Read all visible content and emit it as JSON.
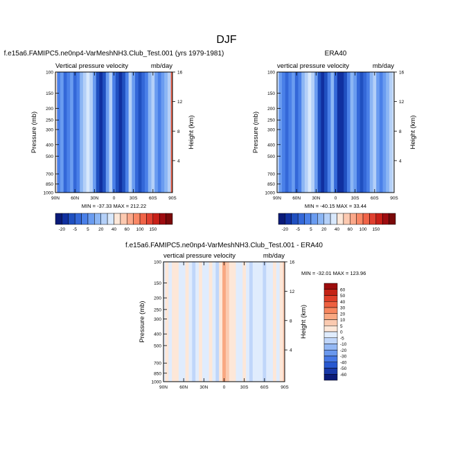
{
  "figure": {
    "title": "DJF"
  },
  "palettes": {
    "full": [
      "#0a1a78",
      "#1030a0",
      "#2050c0",
      "#3468d8",
      "#4a80e8",
      "#6a9cf0",
      "#8cb6f4",
      "#b4d0f8",
      "#d8e8fc",
      "#fde7d8",
      "#fcc9b0",
      "#fba88a",
      "#f98866",
      "#f06448",
      "#e04030",
      "#c82018",
      "#9e0c10",
      "#7a0a0a"
    ],
    "diff": [
      "#0a1a78",
      "#1838a8",
      "#2858d0",
      "#4678e6",
      "#6a98ee",
      "#94b8f4",
      "#c0d6fa",
      "#e0ecfd",
      "#fde7d8",
      "#fbcab0",
      "#f9a882",
      "#f7865e",
      "#ee6040",
      "#de3e28",
      "#c42214",
      "#9c0c0c"
    ]
  },
  "chart_data": [
    {
      "id": "model",
      "type": "heatmap",
      "title": "f.e15a6.FAMIPC5.ne0np4-VarMeshNH3.Club_Test.001 (yrs 1979-1981)",
      "subtitle_left": "Vertical pressure velocity",
      "subtitle_right": "mb/day",
      "xlabel": "",
      "ylabel": "Pressure (mb)",
      "ylabel_right": "Height (km)",
      "x_ticks": [
        "90N",
        "60N",
        "30N",
        "0",
        "30S",
        "60S",
        "90S"
      ],
      "x_tick_values": [
        90,
        60,
        30,
        0,
        -30,
        -60,
        -90
      ],
      "y_ticks": [
        "100",
        "150",
        "200",
        "250",
        "300",
        "400",
        "500",
        "700",
        "850",
        "1000"
      ],
      "y_tick_values": [
        100,
        150,
        200,
        250,
        300,
        400,
        500,
        700,
        850,
        1000
      ],
      "y_scale": "log",
      "right_ticks": [
        "16",
        "12",
        "8",
        "4"
      ],
      "right_tick_values": [
        16,
        12,
        8,
        4
      ],
      "min_label": "MIN = -37.33",
      "max_label": "MAX = 212.22",
      "colorbar": {
        "orientation": "horizontal",
        "labels": [
          "-20",
          "-5",
          "5",
          "20",
          "40",
          "60",
          "100",
          "150"
        ]
      },
      "palette": "full",
      "columns": [
        {
          "lat": 90,
          "v": 9
        },
        {
          "lat": 85,
          "v": 4
        },
        {
          "lat": 80,
          "v": 5
        },
        {
          "lat": 75,
          "v": 3
        },
        {
          "lat": 70,
          "v": 4
        },
        {
          "lat": 65,
          "v": 5
        },
        {
          "lat": 60,
          "v": 3
        },
        {
          "lat": 55,
          "v": 4
        },
        {
          "lat": 50,
          "v": 6
        },
        {
          "lat": 45,
          "v": 7
        },
        {
          "lat": 40,
          "v": 8
        },
        {
          "lat": 35,
          "v": 7
        },
        {
          "lat": 30,
          "v": 5
        },
        {
          "lat": 25,
          "v": 2
        },
        {
          "lat": 20,
          "v": 1
        },
        {
          "lat": 15,
          "v": 2
        },
        {
          "lat": 10,
          "v": 5
        },
        {
          "lat": 5,
          "v": 7
        },
        {
          "lat": 0,
          "v": 4
        },
        {
          "lat": -5,
          "v": 2
        },
        {
          "lat": -10,
          "v": 1
        },
        {
          "lat": -15,
          "v": 2
        },
        {
          "lat": -20,
          "v": 4
        },
        {
          "lat": -25,
          "v": 7
        },
        {
          "lat": -30,
          "v": 5
        },
        {
          "lat": -35,
          "v": 3
        },
        {
          "lat": -40,
          "v": 2
        },
        {
          "lat": -45,
          "v": 3
        },
        {
          "lat": -50,
          "v": 4
        },
        {
          "lat": -55,
          "v": 6
        },
        {
          "lat": -60,
          "v": 7
        },
        {
          "lat": -65,
          "v": 5
        },
        {
          "lat": -70,
          "v": 4
        },
        {
          "lat": -75,
          "v": 5
        },
        {
          "lat": -80,
          "v": 6
        },
        {
          "lat": -85,
          "v": 7
        },
        {
          "lat": -90,
          "v": 13
        }
      ]
    },
    {
      "id": "obs",
      "type": "heatmap",
      "title": "ERA40",
      "subtitle_left": "vertical pressure velocity",
      "subtitle_right": "mb/day",
      "xlabel": "",
      "ylabel": "Pressure (mb)",
      "ylabel_right": "Height (km)",
      "x_ticks": [
        "90N",
        "60N",
        "30N",
        "0",
        "30S",
        "60S",
        "90S"
      ],
      "x_tick_values": [
        90,
        60,
        30,
        0,
        -30,
        -60,
        -90
      ],
      "y_ticks": [
        "100",
        "150",
        "200",
        "250",
        "300",
        "400",
        "500",
        "700",
        "850",
        "1000"
      ],
      "y_tick_values": [
        100,
        150,
        200,
        250,
        300,
        400,
        500,
        700,
        850,
        1000
      ],
      "y_scale": "log",
      "right_ticks": [
        "16",
        "12",
        "8",
        "4"
      ],
      "right_tick_values": [
        16,
        12,
        8,
        4
      ],
      "min_label": "MIN = -40.15",
      "max_label": "MAX =  33.44",
      "colorbar": {
        "orientation": "horizontal",
        "labels": [
          "-20",
          "-5",
          "5",
          "20",
          "40",
          "60",
          "100",
          "150"
        ]
      },
      "palette": "full",
      "columns": [
        {
          "lat": 90,
          "v": 8
        },
        {
          "lat": 85,
          "v": 5
        },
        {
          "lat": 80,
          "v": 4
        },
        {
          "lat": 75,
          "v": 3
        },
        {
          "lat": 70,
          "v": 4
        },
        {
          "lat": 65,
          "v": 5
        },
        {
          "lat": 60,
          "v": 3
        },
        {
          "lat": 55,
          "v": 4
        },
        {
          "lat": 50,
          "v": 6
        },
        {
          "lat": 45,
          "v": 7
        },
        {
          "lat": 40,
          "v": 8
        },
        {
          "lat": 35,
          "v": 7
        },
        {
          "lat": 30,
          "v": 5
        },
        {
          "lat": 25,
          "v": 2
        },
        {
          "lat": 20,
          "v": 1
        },
        {
          "lat": 15,
          "v": 2
        },
        {
          "lat": 10,
          "v": 4
        },
        {
          "lat": 5,
          "v": 6
        },
        {
          "lat": 0,
          "v": 3
        },
        {
          "lat": -5,
          "v": 1
        },
        {
          "lat": -10,
          "v": 1
        },
        {
          "lat": -15,
          "v": 2
        },
        {
          "lat": -20,
          "v": 4
        },
        {
          "lat": -25,
          "v": 6
        },
        {
          "lat": -30,
          "v": 5
        },
        {
          "lat": -35,
          "v": 3
        },
        {
          "lat": -40,
          "v": 2
        },
        {
          "lat": -45,
          "v": 3
        },
        {
          "lat": -50,
          "v": 4
        },
        {
          "lat": -55,
          "v": 6
        },
        {
          "lat": -60,
          "v": 7
        },
        {
          "lat": -65,
          "v": 5
        },
        {
          "lat": -70,
          "v": 4
        },
        {
          "lat": -75,
          "v": 5
        },
        {
          "lat": -80,
          "v": 6
        },
        {
          "lat": -85,
          "v": 7
        },
        {
          "lat": -90,
          "v": 8
        }
      ]
    },
    {
      "id": "diff",
      "type": "heatmap",
      "title": "f.e15a6.FAMIPC5.ne0np4-VarMeshNH3.Club_Test.001 - ERA40",
      "subtitle_left": "vertical pressure velocity",
      "subtitle_right": "mb/day",
      "xlabel": "",
      "ylabel": "Pressure (mb)",
      "ylabel_right": "Height (km)",
      "x_ticks": [
        "90N",
        "60N",
        "30N",
        "0",
        "30S",
        "60S",
        "90S"
      ],
      "x_tick_values": [
        90,
        60,
        30,
        0,
        -30,
        -60,
        -90
      ],
      "y_ticks": [
        "100",
        "150",
        "200",
        "250",
        "300",
        "400",
        "500",
        "700",
        "850",
        "1000"
      ],
      "y_tick_values": [
        100,
        150,
        200,
        250,
        300,
        400,
        500,
        700,
        850,
        1000
      ],
      "y_scale": "log",
      "right_ticks": [
        "16",
        "12",
        "8",
        "4"
      ],
      "right_tick_values": [
        16,
        12,
        8,
        4
      ],
      "min_label": "MIN = -32.01",
      "max_label": "MAX = 123.96",
      "colorbar": {
        "orientation": "vertical",
        "labels": [
          "60",
          "50",
          "40",
          "30",
          "20",
          "10",
          "5",
          "0",
          "-5",
          "-10",
          "-20",
          "-30",
          "-40",
          "-50",
          "-60"
        ]
      },
      "palette": "diff",
      "columns": [
        {
          "lat": 90,
          "v": 7
        },
        {
          "lat": 85,
          "v": 8
        },
        {
          "lat": 80,
          "v": 7
        },
        {
          "lat": 75,
          "v": 8
        },
        {
          "lat": 70,
          "v": 8
        },
        {
          "lat": 65,
          "v": 7
        },
        {
          "lat": 60,
          "v": 7
        },
        {
          "lat": 55,
          "v": 8
        },
        {
          "lat": 50,
          "v": 7
        },
        {
          "lat": 45,
          "v": 6
        },
        {
          "lat": 40,
          "v": 7
        },
        {
          "lat": 35,
          "v": 8
        },
        {
          "lat": 30,
          "v": 7
        },
        {
          "lat": 25,
          "v": 7
        },
        {
          "lat": 20,
          "v": 8
        },
        {
          "lat": 15,
          "v": 7
        },
        {
          "lat": 10,
          "v": 6
        },
        {
          "lat": 5,
          "v": 8
        },
        {
          "lat": 0,
          "v": 10
        },
        {
          "lat": -5,
          "v": 9
        },
        {
          "lat": -10,
          "v": 8
        },
        {
          "lat": -15,
          "v": 8
        },
        {
          "lat": -20,
          "v": 7
        },
        {
          "lat": -25,
          "v": 7
        },
        {
          "lat": -30,
          "v": 8
        },
        {
          "lat": -35,
          "v": 7
        },
        {
          "lat": -40,
          "v": 6
        },
        {
          "lat": -45,
          "v": 7
        },
        {
          "lat": -50,
          "v": 7
        },
        {
          "lat": -55,
          "v": 7
        },
        {
          "lat": -60,
          "v": 6
        },
        {
          "lat": -65,
          "v": 7
        },
        {
          "lat": -70,
          "v": 7
        },
        {
          "lat": -75,
          "v": 8
        },
        {
          "lat": -80,
          "v": 7
        },
        {
          "lat": -85,
          "v": 8
        },
        {
          "lat": -90,
          "v": 9
        }
      ]
    }
  ]
}
